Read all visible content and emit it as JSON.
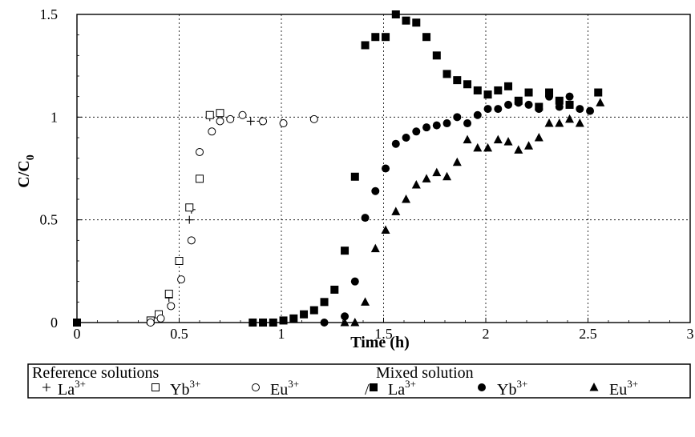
{
  "chart_data": {
    "type": "scatter",
    "xlabel": "Time (h)",
    "ylabel": "C/C",
    "ylabel_sub": "0",
    "xlim": [
      0,
      3
    ],
    "ylim": [
      0,
      1.5
    ],
    "x_ticks": [
      "0",
      "0.5",
      "1",
      "1.5",
      "2",
      "2.5",
      "3"
    ],
    "y_ticks": [
      "0",
      "0.5",
      "1",
      "1.5"
    ],
    "grid": true,
    "legend": {
      "group1_title": "Reference solutions",
      "separator": "/",
      "group2_title": "Mixed solution"
    },
    "series": [
      {
        "name": "La",
        "charge": "3+",
        "group": "reference",
        "marker": "plus",
        "points": [
          [
            0.36,
            0.0
          ],
          [
            0.45,
            0.12
          ],
          [
            0.5,
            0.3
          ],
          [
            0.55,
            0.5
          ],
          [
            0.56,
            0.55
          ],
          [
            0.6,
            0.7
          ],
          [
            0.65,
            1.0
          ],
          [
            0.7,
            1.02
          ],
          [
            0.85,
            0.98
          ],
          [
            0.9,
            0.98
          ]
        ]
      },
      {
        "name": "Yb",
        "charge": "3+",
        "group": "reference",
        "marker": "open-square",
        "points": [
          [
            0.36,
            0.01
          ],
          [
            0.4,
            0.04
          ],
          [
            0.45,
            0.14
          ],
          [
            0.5,
            0.3
          ],
          [
            0.55,
            0.56
          ],
          [
            0.6,
            0.7
          ],
          [
            0.65,
            1.01
          ],
          [
            0.7,
            1.02
          ]
        ]
      },
      {
        "name": "Eu",
        "charge": "3+",
        "group": "reference",
        "marker": "open-circle",
        "points": [
          [
            0.36,
            0.0
          ],
          [
            0.41,
            0.02
          ],
          [
            0.46,
            0.08
          ],
          [
            0.51,
            0.21
          ],
          [
            0.56,
            0.4
          ],
          [
            0.6,
            0.83
          ],
          [
            0.66,
            0.93
          ],
          [
            0.7,
            0.98
          ],
          [
            0.75,
            0.99
          ],
          [
            0.81,
            1.01
          ],
          [
            0.91,
            0.98
          ],
          [
            1.01,
            0.97
          ],
          [
            1.16,
            0.99
          ]
        ]
      },
      {
        "name": "La",
        "charge": "3+",
        "group": "mixed",
        "marker": "filled-square",
        "points": [
          [
            0.0,
            0.0
          ],
          [
            0.86,
            0.0
          ],
          [
            0.91,
            0.0
          ],
          [
            0.96,
            0.0
          ],
          [
            1.01,
            0.01
          ],
          [
            1.06,
            0.02
          ],
          [
            1.11,
            0.04
          ],
          [
            1.16,
            0.06
          ],
          [
            1.21,
            0.1
          ],
          [
            1.26,
            0.16
          ],
          [
            1.31,
            0.35
          ],
          [
            1.36,
            0.71
          ],
          [
            1.41,
            1.35
          ],
          [
            1.46,
            1.39
          ],
          [
            1.51,
            1.39
          ],
          [
            1.56,
            1.5
          ],
          [
            1.61,
            1.47
          ],
          [
            1.66,
            1.46
          ],
          [
            1.71,
            1.39
          ],
          [
            1.76,
            1.3
          ],
          [
            1.81,
            1.21
          ],
          [
            1.86,
            1.18
          ],
          [
            1.91,
            1.16
          ],
          [
            1.96,
            1.13
          ],
          [
            2.01,
            1.11
          ],
          [
            2.06,
            1.13
          ],
          [
            2.11,
            1.15
          ],
          [
            2.16,
            1.08
          ],
          [
            2.21,
            1.12
          ],
          [
            2.26,
            1.05
          ],
          [
            2.31,
            1.12
          ],
          [
            2.36,
            1.08
          ],
          [
            2.41,
            1.06
          ],
          [
            2.55,
            1.12
          ]
        ]
      },
      {
        "name": "Yb",
        "charge": "3+",
        "group": "mixed",
        "marker": "filled-circle",
        "points": [
          [
            1.21,
            0.0
          ],
          [
            1.31,
            0.03
          ],
          [
            1.36,
            0.2
          ],
          [
            1.41,
            0.51
          ],
          [
            1.46,
            0.64
          ],
          [
            1.51,
            0.75
          ],
          [
            1.56,
            0.87
          ],
          [
            1.61,
            0.9
          ],
          [
            1.66,
            0.93
          ],
          [
            1.71,
            0.95
          ],
          [
            1.76,
            0.96
          ],
          [
            1.81,
            0.97
          ],
          [
            1.86,
            1.0
          ],
          [
            1.91,
            0.97
          ],
          [
            1.96,
            1.01
          ],
          [
            2.01,
            1.04
          ],
          [
            2.06,
            1.04
          ],
          [
            2.11,
            1.06
          ],
          [
            2.16,
            1.07
          ],
          [
            2.21,
            1.06
          ],
          [
            2.26,
            1.04
          ],
          [
            2.31,
            1.1
          ],
          [
            2.36,
            1.05
          ],
          [
            2.41,
            1.1
          ],
          [
            2.46,
            1.04
          ],
          [
            2.51,
            1.03
          ]
        ]
      },
      {
        "name": "Eu",
        "charge": "3+",
        "group": "mixed",
        "marker": "filled-triangle",
        "points": [
          [
            1.31,
            0.0
          ],
          [
            1.36,
            0.0
          ],
          [
            1.41,
            0.1
          ],
          [
            1.46,
            0.36
          ],
          [
            1.51,
            0.45
          ],
          [
            1.56,
            0.54
          ],
          [
            1.61,
            0.6
          ],
          [
            1.66,
            0.67
          ],
          [
            1.71,
            0.7
          ],
          [
            1.76,
            0.73
          ],
          [
            1.81,
            0.71
          ],
          [
            1.86,
            0.78
          ],
          [
            1.91,
            0.89
          ],
          [
            1.96,
            0.85
          ],
          [
            2.01,
            0.85
          ],
          [
            2.06,
            0.89
          ],
          [
            2.11,
            0.88
          ],
          [
            2.16,
            0.84
          ],
          [
            2.21,
            0.86
          ],
          [
            2.26,
            0.9
          ],
          [
            2.31,
            0.97
          ],
          [
            2.36,
            0.97
          ],
          [
            2.41,
            0.99
          ],
          [
            2.46,
            0.97
          ],
          [
            2.56,
            1.07
          ]
        ]
      }
    ]
  }
}
